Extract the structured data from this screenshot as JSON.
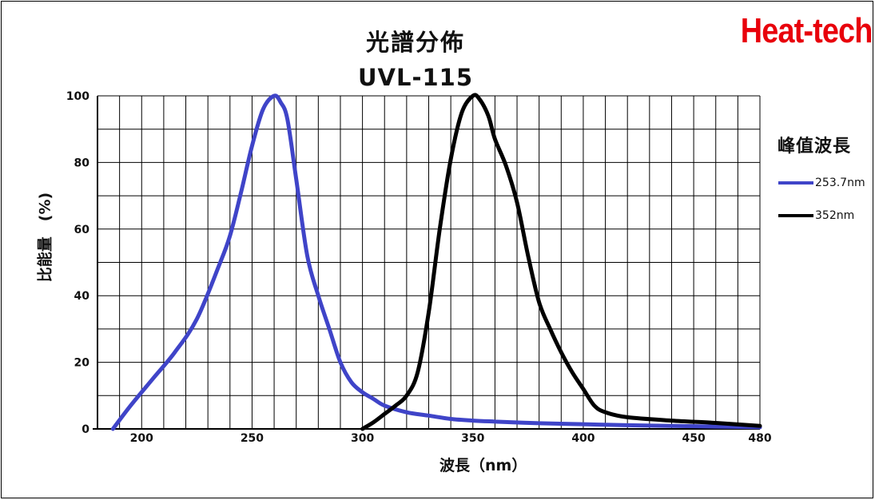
{
  "brand": "Heat-tech",
  "chart_data": {
    "type": "line",
    "title": "光譜分佈",
    "subtitle": "UVL-115",
    "xlabel": "波長（nm）",
    "ylabel": "比能量　(%)",
    "xlim": [
      180,
      480
    ],
    "ylim": [
      0,
      100
    ],
    "x_ticks": [
      {
        "value": 200,
        "label": "200"
      },
      {
        "value": 250,
        "label": "250"
      },
      {
        "value": 300,
        "label": "300"
      },
      {
        "value": 350,
        "label": "350"
      },
      {
        "value": 400,
        "label": "400"
      },
      {
        "value": 450,
        "label": "450"
      },
      {
        "value": 480,
        "label": "480"
      }
    ],
    "y_ticks": [
      {
        "value": 0,
        "label": "0"
      },
      {
        "value": 20,
        "label": "20"
      },
      {
        "value": 40,
        "label": "40"
      },
      {
        "value": 60,
        "label": "60"
      },
      {
        "value": 80,
        "label": "80"
      },
      {
        "value": 100,
        "label": "100"
      }
    ],
    "grid": true,
    "legend": {
      "title": "峰值波長",
      "position": "right"
    },
    "series": [
      {
        "name": "253.7nm",
        "color": "#3f44c8",
        "points": [
          [
            187,
            0
          ],
          [
            195,
            7
          ],
          [
            205,
            15
          ],
          [
            215,
            23
          ],
          [
            225,
            33
          ],
          [
            235,
            49
          ],
          [
            240,
            58
          ],
          [
            245,
            71
          ],
          [
            250,
            85
          ],
          [
            255,
            96
          ],
          [
            260,
            100
          ],
          [
            263,
            98
          ],
          [
            266,
            93
          ],
          [
            270,
            75
          ],
          [
            275,
            52
          ],
          [
            280,
            40
          ],
          [
            285,
            30
          ],
          [
            290,
            20
          ],
          [
            295,
            14
          ],
          [
            300,
            11
          ],
          [
            305,
            9
          ],
          [
            310,
            7
          ],
          [
            320,
            5
          ],
          [
            330,
            4
          ],
          [
            340,
            3
          ],
          [
            350,
            2.5
          ],
          [
            360,
            2.2
          ],
          [
            380,
            1.7
          ],
          [
            400,
            1.4
          ],
          [
            420,
            1.1
          ],
          [
            440,
            0.9
          ],
          [
            460,
            0.7
          ],
          [
            480,
            0.5
          ]
        ]
      },
      {
        "name": "352nm",
        "color": "#000000",
        "points": [
          [
            300,
            0
          ],
          [
            305,
            2
          ],
          [
            310,
            4.5
          ],
          [
            315,
            7
          ],
          [
            320,
            10
          ],
          [
            325,
            17
          ],
          [
            330,
            35
          ],
          [
            335,
            60
          ],
          [
            340,
            81
          ],
          [
            345,
            95
          ],
          [
            350,
            100
          ],
          [
            353,
            99
          ],
          [
            357,
            94
          ],
          [
            360,
            87
          ],
          [
            365,
            79
          ],
          [
            370,
            68
          ],
          [
            375,
            52
          ],
          [
            380,
            38
          ],
          [
            385,
            30
          ],
          [
            390,
            23
          ],
          [
            395,
            17
          ],
          [
            400,
            12
          ],
          [
            405,
            7
          ],
          [
            410,
            5
          ],
          [
            420,
            3.5
          ],
          [
            440,
            2.5
          ],
          [
            460,
            1.8
          ],
          [
            480,
            0.9
          ]
        ]
      }
    ]
  }
}
